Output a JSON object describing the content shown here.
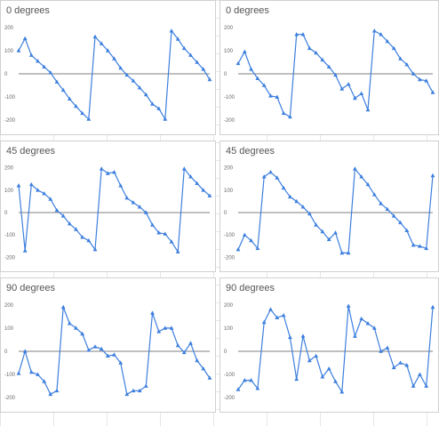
{
  "chart_data": [
    {
      "type": "line",
      "title": "0 degrees",
      "yticks": [
        200,
        100,
        0,
        -100,
        -200
      ],
      "ylim": [
        -230,
        230
      ],
      "color": "#3d7fde",
      "values": [
        100,
        152,
        80,
        55,
        30,
        5,
        -35,
        -70,
        -108,
        -140,
        -170,
        -195,
        160,
        130,
        100,
        65,
        25,
        -5,
        -30,
        -60,
        -90,
        -130,
        -150,
        -195,
        185,
        150,
        110,
        80,
        50,
        20,
        -25
      ]
    },
    {
      "type": "line",
      "title": "0 degrees",
      "yticks": [
        200,
        100,
        0,
        -100,
        -200
      ],
      "ylim": [
        -230,
        230
      ],
      "color": "#3d7fde",
      "values": [
        45,
        95,
        20,
        -20,
        -50,
        -95,
        -100,
        -170,
        -185,
        170,
        170,
        110,
        90,
        60,
        30,
        -5,
        -65,
        -45,
        -105,
        -85,
        -155,
        185,
        170,
        140,
        110,
        65,
        40,
        0,
        -25,
        -30,
        -80
      ]
    },
    {
      "type": "line",
      "title": "45 degrees",
      "yticks": [
        200,
        100,
        0,
        -100,
        -200
      ],
      "ylim": [
        -230,
        230
      ],
      "color": "#3d7fde",
      "values": [
        120,
        -170,
        125,
        100,
        85,
        60,
        10,
        -15,
        -50,
        -75,
        -110,
        -125,
        -165,
        195,
        175,
        180,
        120,
        65,
        45,
        25,
        0,
        -55,
        -90,
        -95,
        -130,
        -175,
        195,
        160,
        130,
        100,
        75
      ]
    },
    {
      "type": "line",
      "title": "45 degrees",
      "yticks": [
        200,
        100,
        0,
        -100,
        -200
      ],
      "ylim": [
        -230,
        230
      ],
      "color": "#3d7fde",
      "values": [
        -165,
        -100,
        -125,
        -160,
        160,
        180,
        155,
        110,
        70,
        50,
        25,
        -5,
        -55,
        -85,
        -120,
        -90,
        -180,
        -180,
        195,
        160,
        125,
        80,
        40,
        15,
        -15,
        -45,
        -80,
        -145,
        -150,
        -160,
        165
      ]
    },
    {
      "type": "line",
      "title": "90 degrees",
      "yticks": [
        200,
        100,
        0,
        -100,
        -200
      ],
      "ylim": [
        -230,
        230
      ],
      "color": "#3d7fde",
      "values": [
        -95,
        0,
        -90,
        -100,
        -130,
        -185,
        -170,
        190,
        120,
        100,
        75,
        5,
        20,
        10,
        -20,
        -15,
        -50,
        -185,
        -170,
        -170,
        -150,
        165,
        85,
        100,
        100,
        25,
        -5,
        35,
        -40,
        -75,
        -115
      ]
    },
    {
      "type": "line",
      "title": "90 degrees",
      "yticks": [
        200,
        100,
        0,
        -100,
        -200
      ],
      "ylim": [
        -230,
        230
      ],
      "color": "#3d7fde",
      "values": [
        -165,
        -125,
        -125,
        -160,
        125,
        180,
        145,
        155,
        60,
        -120,
        65,
        -40,
        -20,
        -110,
        -75,
        -130,
        -175,
        195,
        65,
        140,
        120,
        100,
        0,
        15,
        -70,
        -50,
        -60,
        -150,
        -100,
        -150,
        190
      ]
    }
  ]
}
